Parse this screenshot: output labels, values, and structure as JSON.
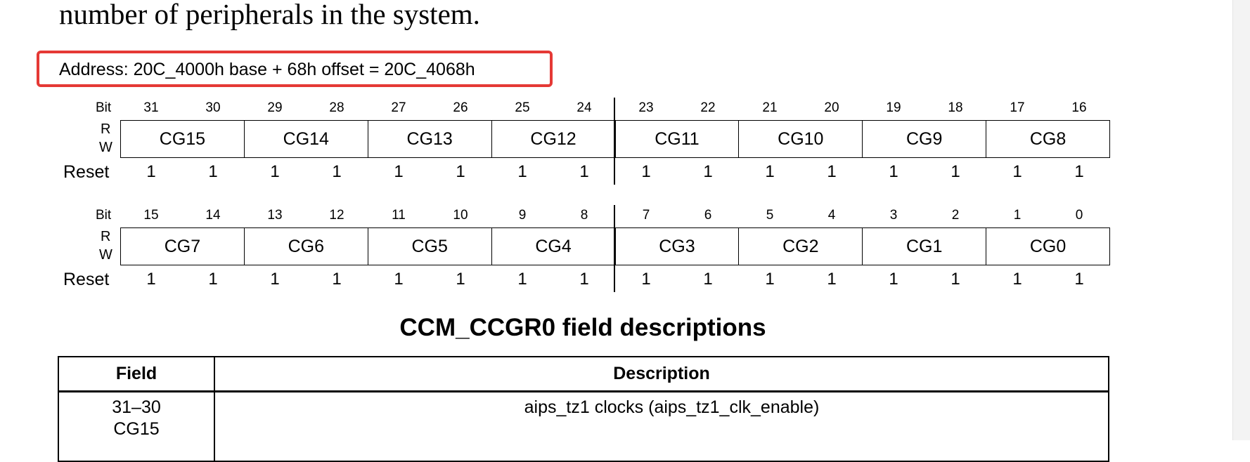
{
  "intro_text": "number of peripherals in the system.",
  "address": "Address: 20C_4000h base + 68h offset = 20C_4068h",
  "labels": {
    "bit": "Bit",
    "r": "R",
    "w": "W",
    "reset": "Reset"
  },
  "register_rows": [
    {
      "bits": [
        "31",
        "30",
        "29",
        "28",
        "27",
        "26",
        "25",
        "24",
        "23",
        "22",
        "21",
        "20",
        "19",
        "18",
        "17",
        "16"
      ],
      "fields": [
        "CG15",
        "CG14",
        "CG13",
        "CG12",
        "CG11",
        "CG10",
        "CG9",
        "CG8"
      ],
      "reset": [
        "1",
        "1",
        "1",
        "1",
        "1",
        "1",
        "1",
        "1",
        "1",
        "1",
        "1",
        "1",
        "1",
        "1",
        "1",
        "1"
      ]
    },
    {
      "bits": [
        "15",
        "14",
        "13",
        "12",
        "11",
        "10",
        "9",
        "8",
        "7",
        "6",
        "5",
        "4",
        "3",
        "2",
        "1",
        "0"
      ],
      "fields": [
        "CG7",
        "CG6",
        "CG5",
        "CG4",
        "CG3",
        "CG2",
        "CG1",
        "CG0"
      ],
      "reset": [
        "1",
        "1",
        "1",
        "1",
        "1",
        "1",
        "1",
        "1",
        "1",
        "1",
        "1",
        "1",
        "1",
        "1",
        "1",
        "1"
      ]
    }
  ],
  "table": {
    "title": "CCM_CCGR0 field descriptions",
    "col_field": "Field",
    "col_description": "Description",
    "rows": [
      {
        "bits": "31–30",
        "name": "CG15",
        "description": "aips_tz1 clocks (aips_tz1_clk_enable)"
      }
    ]
  }
}
